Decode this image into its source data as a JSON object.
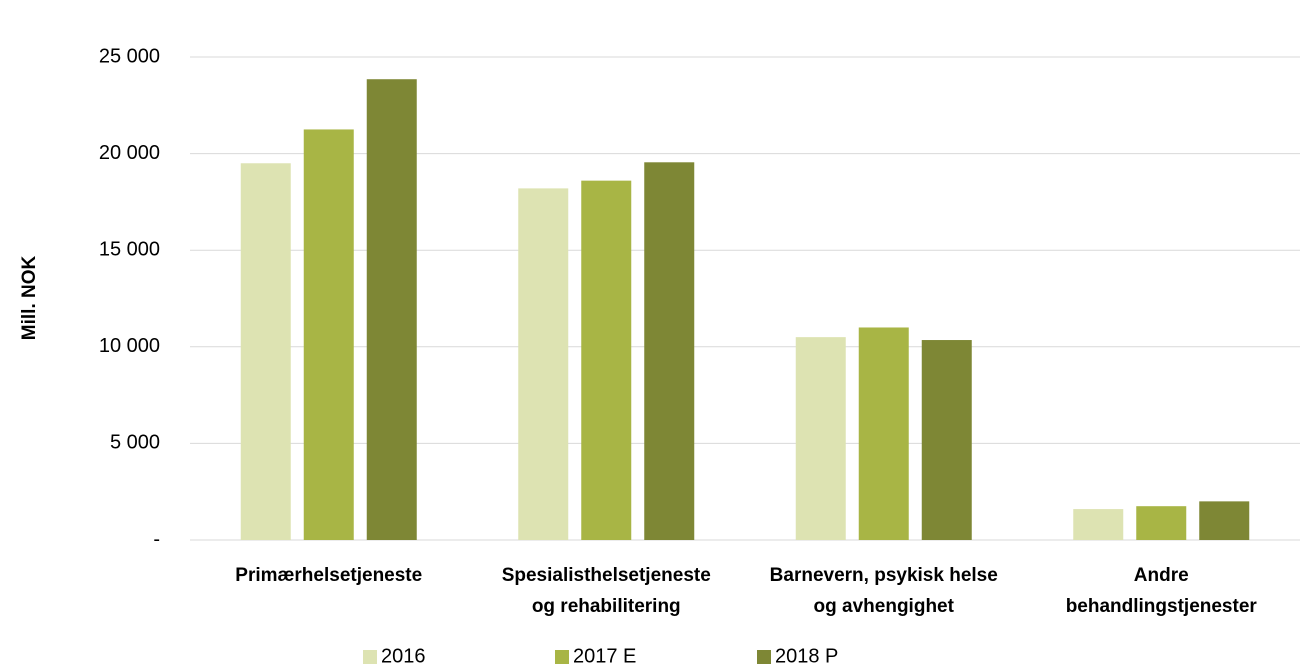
{
  "chart_data": {
    "type": "bar",
    "y_label": "Mill. NOK",
    "categories": [
      [
        "Primærhelsetjeneste"
      ],
      [
        "Spesialisthelsetjeneste",
        "og rehabilitering"
      ],
      [
        "Barnevern, psykisk helse",
        "og avhengighet"
      ],
      [
        "Andre",
        "behandlingstjenester"
      ]
    ],
    "series": [
      {
        "name": "2016",
        "color": "#dde3b2",
        "values": [
          19500,
          18200,
          10500,
          1600
        ]
      },
      {
        "name": "2017 E",
        "color": "#a8b545",
        "values": [
          21250,
          18600,
          11000,
          1750
        ]
      },
      {
        "name": "2018 P",
        "color": "#7e8735",
        "values": [
          23850,
          19550,
          10350,
          2000
        ]
      }
    ],
    "ylim": [
      0,
      25000
    ],
    "yticks": [
      {
        "value": 0,
        "label": "-"
      },
      {
        "value": 5000,
        "label": "5 000"
      },
      {
        "value": 10000,
        "label": "10 000"
      },
      {
        "value": 15000,
        "label": "15 000"
      },
      {
        "value": 20000,
        "label": "20 000"
      },
      {
        "value": 25000,
        "label": "25 000"
      }
    ],
    "grid": true,
    "legend": "bottom"
  }
}
